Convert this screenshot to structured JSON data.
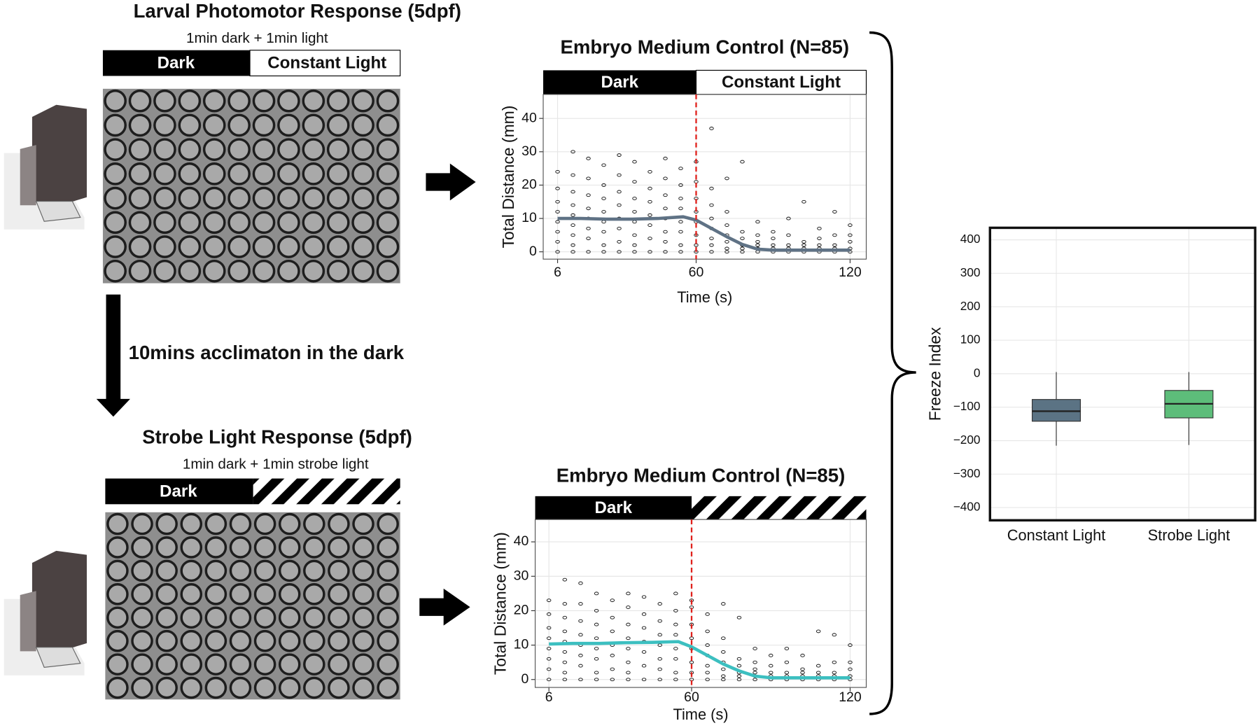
{
  "panels": {
    "top": {
      "title": "Larval Photomotor Response (5dpf)",
      "protocol": "1min dark + 1min light",
      "dark": "Dark",
      "light": "Constant Light"
    },
    "acclimation": "10mins acclimaton in the dark",
    "bottom": {
      "title": "Strobe Light Response (5dpf)",
      "protocol": "1min dark + 1min strobe light",
      "dark": "Dark"
    }
  },
  "chart_data": [
    {
      "type": "scatter",
      "title": "Embryo Medium Control (N=85)",
      "phases": [
        "Dark",
        "Constant Light"
      ],
      "x_label": "Time (s)",
      "y_label": "Total Distance (mm)",
      "xlim": [
        0.4,
        126.3
      ],
      "ylim": [
        -2.2,
        47.2
      ],
      "xticks": [
        6,
        60,
        120
      ],
      "yticks": [
        0,
        10,
        20,
        30,
        40
      ],
      "grid": true,
      "marker_x": 60,
      "marker_color": "#e0201b",
      "x": [
        6,
        12,
        18,
        24,
        30,
        36,
        42,
        48,
        54,
        60,
        66,
        72,
        78,
        84,
        90,
        96,
        102,
        108,
        114,
        120
      ],
      "points": [
        [
          0,
          3,
          6,
          9,
          12,
          15,
          19,
          24
        ],
        [
          0,
          2,
          5,
          8,
          11,
          14,
          18,
          23,
          30
        ],
        [
          0,
          4,
          7,
          10,
          13,
          17,
          22,
          28
        ],
        [
          0,
          2,
          6,
          9,
          12,
          16,
          20,
          26
        ],
        [
          0,
          3,
          7,
          10,
          14,
          18,
          23,
          29
        ],
        [
          0,
          2,
          5,
          9,
          12,
          16,
          21,
          27
        ],
        [
          0,
          4,
          8,
          11,
          15,
          19,
          24
        ],
        [
          0,
          3,
          6,
          10,
          13,
          17,
          22,
          28
        ],
        [
          0,
          2,
          6,
          9,
          13,
          16,
          20,
          25
        ],
        [
          0,
          2,
          5,
          9,
          12,
          16,
          21,
          27
        ],
        [
          0,
          2,
          4,
          7,
          10,
          14,
          19,
          37
        ],
        [
          0,
          1,
          3,
          5,
          8,
          12,
          22
        ],
        [
          0,
          1,
          2,
          4,
          6,
          27
        ],
        [
          0,
          1,
          2,
          3,
          5,
          9
        ],
        [
          0,
          1,
          2,
          4,
          6
        ],
        [
          0,
          1,
          2,
          5,
          10
        ],
        [
          0,
          1,
          2,
          3,
          15
        ],
        [
          0,
          1,
          2,
          4,
          7
        ],
        [
          0,
          1,
          2,
          5,
          12
        ],
        [
          0,
          1,
          3,
          5,
          8
        ]
      ],
      "trend": {
        "color": "#5f7285",
        "x": [
          6,
          15,
          25,
          35,
          45,
          55,
          60,
          66,
          72,
          78,
          84,
          90,
          100,
          110,
          120
        ],
        "values": [
          10,
          10,
          9.8,
          9.8,
          10,
          10.5,
          9.5,
          7,
          4.5,
          2.2,
          0.8,
          0.5,
          0.5,
          0.5,
          0.5
        ]
      }
    },
    {
      "type": "scatter",
      "title": "Embryo Medium Control (N=85)",
      "phases": [
        "Dark"
      ],
      "x_label": "Time (s)",
      "y_label": "Total Distance (mm)",
      "xlim": [
        0.8,
        126.1
      ],
      "ylim": [
        -2.3,
        46.5
      ],
      "xticks": [
        6,
        60,
        120
      ],
      "yticks": [
        0,
        10,
        20,
        30,
        40
      ],
      "grid": true,
      "marker_x": 60,
      "marker_color": "#e0201b",
      "x": [
        6,
        12,
        18,
        24,
        30,
        36,
        42,
        48,
        54,
        60,
        66,
        72,
        78,
        84,
        90,
        96,
        102,
        108,
        114,
        120
      ],
      "points": [
        [
          0,
          3,
          6,
          9,
          12,
          15,
          19,
          23
        ],
        [
          0,
          2,
          5,
          8,
          11,
          14,
          18,
          22,
          29
        ],
        [
          0,
          4,
          7,
          10,
          13,
          17,
          22,
          28
        ],
        [
          0,
          2,
          6,
          9,
          12,
          16,
          20,
          25
        ],
        [
          0,
          3,
          7,
          10,
          14,
          18,
          23
        ],
        [
          0,
          2,
          5,
          9,
          12,
          16,
          21,
          25
        ],
        [
          0,
          4,
          8,
          11,
          15,
          19,
          24
        ],
        [
          0,
          3,
          6,
          10,
          13,
          17,
          22
        ],
        [
          0,
          2,
          6,
          9,
          13,
          16,
          20,
          25
        ],
        [
          0,
          2,
          5,
          9,
          12,
          16,
          21,
          23
        ],
        [
          0,
          2,
          4,
          7,
          10,
          14,
          19
        ],
        [
          0,
          1,
          3,
          5,
          8,
          12,
          22
        ],
        [
          0,
          1,
          2,
          4,
          6,
          18
        ],
        [
          0,
          1,
          2,
          3,
          5,
          9
        ],
        [
          0,
          1,
          2,
          4,
          7
        ],
        [
          0,
          1,
          2,
          5,
          9
        ],
        [
          0,
          1,
          2,
          3,
          7
        ],
        [
          0,
          1,
          2,
          4,
          14
        ],
        [
          0,
          1,
          2,
          5,
          13
        ],
        [
          0,
          1,
          3,
          5,
          10
        ]
      ],
      "trend": {
        "color": "#3cbfc0",
        "x": [
          6,
          15,
          25,
          35,
          45,
          55,
          60,
          66,
          72,
          78,
          84,
          90,
          100,
          110,
          120
        ],
        "values": [
          10.3,
          10.5,
          10.5,
          10.7,
          10.8,
          11,
          9.5,
          7,
          4.5,
          2.5,
          1,
          0.5,
          0.5,
          0.5,
          0.5
        ]
      }
    },
    {
      "type": "box",
      "y_label": "Freeze Index",
      "categories": [
        "Constant Light",
        "Strobe Light"
      ],
      "ylim": [
        -438,
        436
      ],
      "grid": true,
      "yticks": [
        {
          "value": -400,
          "label": "−400"
        },
        {
          "value": -300,
          "label": "−300"
        },
        {
          "value": -200,
          "label": "−200"
        },
        {
          "value": -100,
          "label": "−100"
        },
        0,
        100,
        200,
        300,
        400
      ],
      "boxes": [
        {
          "min": -215,
          "q1": -142,
          "median": -112,
          "q3": -77,
          "max": 5,
          "color": "#5b7384"
        },
        {
          "min": -213,
          "q1": -132,
          "median": -90,
          "q3": -50,
          "max": 5,
          "color": "#5dbd7a"
        }
      ]
    }
  ]
}
